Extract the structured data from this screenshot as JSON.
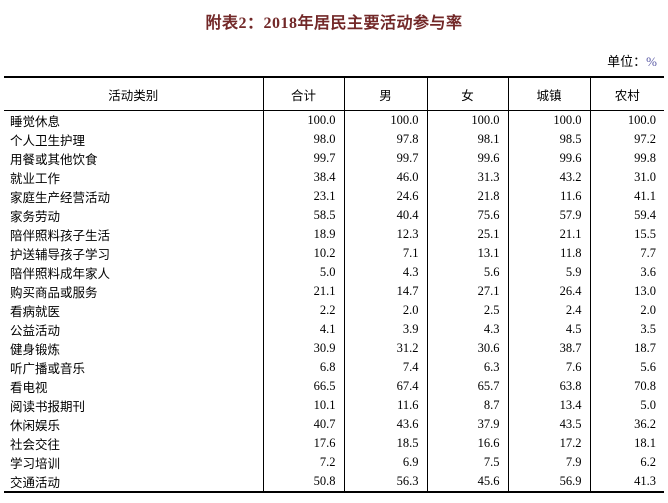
{
  "title": "附表2：2018年居民主要活动参与率",
  "unit": {
    "label": "单位：",
    "value": "%"
  },
  "colors": {
    "title_color": "#722828",
    "unit_percent_color": "#5a5aa5",
    "border_color": "#000000"
  },
  "table": {
    "headers": [
      "活动类别",
      "合计",
      "男",
      "女",
      "城镇",
      "农村"
    ],
    "rows": [
      {
        "label": "睡觉休息",
        "values": [
          "100.0",
          "100.0",
          "100.0",
          "100.0",
          "100.0"
        ]
      },
      {
        "label": "个人卫生护理",
        "values": [
          "98.0",
          "97.8",
          "98.1",
          "98.5",
          "97.2"
        ]
      },
      {
        "label": "用餐或其他饮食",
        "values": [
          "99.7",
          "99.7",
          "99.6",
          "99.6",
          "99.8"
        ]
      },
      {
        "label": "就业工作",
        "values": [
          "38.4",
          "46.0",
          "31.3",
          "43.2",
          "31.0"
        ]
      },
      {
        "label": "家庭生产经营活动",
        "values": [
          "23.1",
          "24.6",
          "21.8",
          "11.6",
          "41.1"
        ]
      },
      {
        "label": "家务劳动",
        "values": [
          "58.5",
          "40.4",
          "75.6",
          "57.9",
          "59.4"
        ]
      },
      {
        "label": "陪伴照料孩子生活",
        "values": [
          "18.9",
          "12.3",
          "25.1",
          "21.1",
          "15.5"
        ]
      },
      {
        "label": "护送辅导孩子学习",
        "values": [
          "10.2",
          "7.1",
          "13.1",
          "11.8",
          "7.7"
        ]
      },
      {
        "label": "陪伴照料成年家人",
        "values": [
          "5.0",
          "4.3",
          "5.6",
          "5.9",
          "3.6"
        ]
      },
      {
        "label": "购买商品或服务",
        "values": [
          "21.1",
          "14.7",
          "27.1",
          "26.4",
          "13.0"
        ]
      },
      {
        "label": "看病就医",
        "values": [
          "2.2",
          "2.0",
          "2.5",
          "2.4",
          "2.0"
        ]
      },
      {
        "label": "公益活动",
        "values": [
          "4.1",
          "3.9",
          "4.3",
          "4.5",
          "3.5"
        ]
      },
      {
        "label": "健身锻炼",
        "values": [
          "30.9",
          "31.2",
          "30.6",
          "38.7",
          "18.7"
        ]
      },
      {
        "label": "听广播或音乐",
        "values": [
          "6.8",
          "7.4",
          "6.3",
          "7.6",
          "5.6"
        ]
      },
      {
        "label": "看电视",
        "values": [
          "66.5",
          "67.4",
          "65.7",
          "63.8",
          "70.8"
        ]
      },
      {
        "label": "阅读书报期刊",
        "values": [
          "10.1",
          "11.6",
          "8.7",
          "13.4",
          "5.0"
        ]
      },
      {
        "label": "休闲娱乐",
        "values": [
          "40.7",
          "43.6",
          "37.9",
          "43.5",
          "36.2"
        ]
      },
      {
        "label": "社会交往",
        "values": [
          "17.6",
          "18.5",
          "16.6",
          "17.2",
          "18.1"
        ]
      },
      {
        "label": "学习培训",
        "values": [
          "7.2",
          "6.9",
          "7.5",
          "7.9",
          "6.2"
        ]
      },
      {
        "label": "交通活动",
        "values": [
          "50.8",
          "56.3",
          "45.6",
          "56.9",
          "41.3"
        ]
      }
    ]
  }
}
